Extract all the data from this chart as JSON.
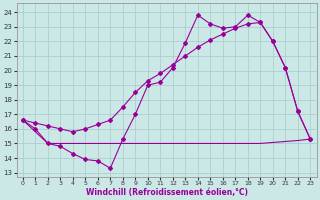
{
  "line1_x": [
    0,
    1,
    2,
    3,
    4,
    5,
    6,
    7,
    8,
    9,
    10,
    11,
    12,
    13,
    14,
    15,
    16,
    17,
    18,
    19,
    20,
    21,
    22,
    23
  ],
  "line1_y": [
    16.6,
    16.0,
    15.0,
    14.8,
    14.3,
    13.9,
    13.8,
    13.3,
    15.3,
    17.0,
    19.0,
    19.2,
    20.2,
    21.9,
    23.8,
    23.2,
    22.9,
    23.0,
    23.8,
    23.3,
    22.0,
    20.2,
    17.2,
    15.3
  ],
  "line2_x": [
    0,
    1,
    2,
    3,
    4,
    5,
    6,
    7,
    8,
    9,
    10,
    11,
    12,
    13,
    14,
    15,
    16,
    17,
    18,
    19,
    20,
    21,
    22,
    23
  ],
  "line2_y": [
    16.6,
    16.4,
    16.2,
    16.0,
    15.8,
    16.0,
    16.3,
    16.6,
    17.5,
    18.5,
    19.3,
    19.8,
    20.4,
    21.0,
    21.6,
    22.1,
    22.5,
    22.9,
    23.2,
    23.3,
    22.0,
    20.2,
    17.2,
    15.3
  ],
  "line3_x": [
    0,
    2,
    7,
    8,
    9,
    10,
    18,
    19,
    22,
    23
  ],
  "line3_y": [
    16.6,
    15.0,
    15.0,
    15.0,
    15.0,
    15.0,
    15.0,
    15.0,
    15.2,
    15.3
  ],
  "bg_color": "#cce8e6",
  "line_color": "#990099",
  "grid_color": "#aacfce",
  "xlabel": "Windchill (Refroidissement éolien,°C)",
  "yticks": [
    13,
    14,
    15,
    16,
    17,
    18,
    19,
    20,
    21,
    22,
    23,
    24
  ],
  "xticks": [
    0,
    1,
    2,
    3,
    4,
    5,
    6,
    7,
    8,
    9,
    10,
    11,
    12,
    13,
    14,
    15,
    16,
    17,
    18,
    19,
    20,
    21,
    22,
    23
  ],
  "ylim": [
    12.7,
    24.6
  ],
  "xlim": [
    -0.5,
    23.5
  ]
}
